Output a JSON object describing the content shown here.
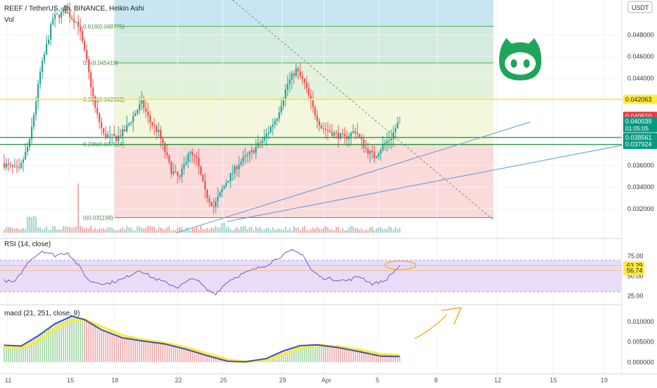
{
  "header": {
    "symbol_line": "REEF / TetherUS, 4h, BINANCE, Heikin Ashi",
    "vol_label": "Vol",
    "currency_button": "USDT"
  },
  "fib": {
    "levels": [
      {
        "label": "0.618(0.048775)",
        "value": 0.048775
      },
      {
        "label": "0.5(0.045419)",
        "value": 0.045419
      },
      {
        "label": "0.382(0.042063)",
        "value": 0.042063
      },
      {
        "label": "0.236(0.037924)",
        "value": 0.037924
      },
      {
        "label": "0(0.031198)",
        "value": 0.031198
      }
    ]
  },
  "price_badges": [
    {
      "text": "0.042063",
      "value": 0.042063,
      "bg": "#ffeb3b",
      "fg": "#222222"
    },
    {
      "text": "0.040510",
      "value": 0.04051,
      "bg": "#f23645",
      "fg": "#ffffff"
    },
    {
      "text": "0.040039",
      "value": 0.040039,
      "bg": "#089981",
      "fg": "#ffffff",
      "sub": "01:05:05"
    },
    {
      "text": "0.038561",
      "value": 0.038561,
      "bg": "#089981",
      "fg": "#ffffff"
    },
    {
      "text": "0.037924",
      "value": 0.037924,
      "bg": "#089981",
      "fg": "#ffffff"
    }
  ],
  "rsi": {
    "label": "RSI (14, close)",
    "badges": [
      {
        "text": "63.29",
        "value": 63.29,
        "bg": "#ffeb3b"
      },
      {
        "text": "56.74",
        "value": 56.74,
        "bg": "#ffeb3b"
      }
    ]
  },
  "macd": {
    "label": "macd (21, 251, close, 9)"
  },
  "colors": {
    "up": "#26a69a",
    "down": "#ef5350",
    "fib_line": "#4caf50",
    "resistance": "#ffeb3b",
    "trendline": "#5b9bd5",
    "rsi_band": "#e9dcf7",
    "macd_line": "#3f51b5",
    "signal_line": "#ffeb3b",
    "arrow": "#ff9800",
    "logo": "#1fa55a"
  },
  "chart_data": [
    {
      "type": "candlestick",
      "title": "REEF / TetherUS, 4h, BINANCE, Heikin Ashi",
      "ylim": [
        0.0298,
        0.0512
      ],
      "ytick_labels": [
        "0.048000",
        "0.046000",
        "0.044000",
        "0.036000",
        "0.034000",
        "0.032000"
      ],
      "yticks": [
        0.048,
        0.046,
        0.044,
        0.036,
        0.034,
        0.032
      ],
      "xtick_labels": [
        "11",
        "15",
        "18",
        "22",
        "25",
        "29",
        "Apr",
        "5",
        "8",
        "12",
        "15",
        "19"
      ],
      "keypoints": [
        {
          "t": 0,
          "price": 0.0362
        },
        {
          "t": 8,
          "price": 0.0355
        },
        {
          "t": 13,
          "price": 0.0382
        },
        {
          "t": 18,
          "price": 0.0445
        },
        {
          "t": 24,
          "price": 0.0495
        },
        {
          "t": 30,
          "price": 0.0502
        },
        {
          "t": 36,
          "price": 0.049
        },
        {
          "t": 40,
          "price": 0.0455
        },
        {
          "t": 44,
          "price": 0.0412
        },
        {
          "t": 48,
          "price": 0.0388
        },
        {
          "t": 54,
          "price": 0.0385
        },
        {
          "t": 58,
          "price": 0.0392
        },
        {
          "t": 62,
          "price": 0.0405
        },
        {
          "t": 66,
          "price": 0.0418
        },
        {
          "t": 70,
          "price": 0.04
        },
        {
          "t": 74,
          "price": 0.039
        },
        {
          "t": 80,
          "price": 0.0355
        },
        {
          "t": 84,
          "price": 0.0348
        },
        {
          "t": 88,
          "price": 0.0372
        },
        {
          "t": 92,
          "price": 0.0365
        },
        {
          "t": 96,
          "price": 0.0335
        },
        {
          "t": 100,
          "price": 0.0322
        },
        {
          "t": 106,
          "price": 0.0345
        },
        {
          "t": 112,
          "price": 0.0362
        },
        {
          "t": 118,
          "price": 0.0372
        },
        {
          "t": 124,
          "price": 0.0385
        },
        {
          "t": 130,
          "price": 0.0405
        },
        {
          "t": 135,
          "price": 0.0435
        },
        {
          "t": 139,
          "price": 0.0448
        },
        {
          "t": 143,
          "price": 0.0435
        },
        {
          "t": 147,
          "price": 0.0412
        },
        {
          "t": 151,
          "price": 0.0395
        },
        {
          "t": 156,
          "price": 0.039
        },
        {
          "t": 162,
          "price": 0.0385
        },
        {
          "t": 167,
          "price": 0.0392
        },
        {
          "t": 172,
          "price": 0.0375
        },
        {
          "t": 176,
          "price": 0.0368
        },
        {
          "t": 180,
          "price": 0.0378
        },
        {
          "t": 184,
          "price": 0.0386
        },
        {
          "t": 187,
          "price": 0.0398
        }
      ],
      "candle_count": 188,
      "fib_levels": [
        0.048775,
        0.045419,
        0.042063,
        0.037924,
        0.031198
      ],
      "horizontal_lines": [
        0.042063,
        0.038561,
        0.037924
      ]
    },
    {
      "type": "line",
      "title": "RSI (14, close)",
      "ylim": [
        20,
        85
      ],
      "ytick_labels": [
        "75.00",
        "50.00",
        "25.00"
      ],
      "yticks": [
        75,
        50,
        25
      ],
      "band": [
        30,
        70
      ],
      "keypoints": [
        {
          "t": 0,
          "v": 44
        },
        {
          "t": 5,
          "v": 42
        },
        {
          "t": 12,
          "v": 70
        },
        {
          "t": 18,
          "v": 82
        },
        {
          "t": 24,
          "v": 76
        },
        {
          "t": 30,
          "v": 80
        },
        {
          "t": 36,
          "v": 60
        },
        {
          "t": 40,
          "v": 44
        },
        {
          "t": 48,
          "v": 40
        },
        {
          "t": 56,
          "v": 46
        },
        {
          "t": 64,
          "v": 58
        },
        {
          "t": 70,
          "v": 48
        },
        {
          "t": 76,
          "v": 42
        },
        {
          "t": 82,
          "v": 36
        },
        {
          "t": 90,
          "v": 48
        },
        {
          "t": 96,
          "v": 32
        },
        {
          "t": 100,
          "v": 28
        },
        {
          "t": 106,
          "v": 44
        },
        {
          "t": 112,
          "v": 52
        },
        {
          "t": 118,
          "v": 58
        },
        {
          "t": 124,
          "v": 64
        },
        {
          "t": 130,
          "v": 74
        },
        {
          "t": 136,
          "v": 82
        },
        {
          "t": 141,
          "v": 78
        },
        {
          "t": 145,
          "v": 58
        },
        {
          "t": 150,
          "v": 48
        },
        {
          "t": 156,
          "v": 46
        },
        {
          "t": 162,
          "v": 44
        },
        {
          "t": 168,
          "v": 50
        },
        {
          "t": 174,
          "v": 40
        },
        {
          "t": 180,
          "v": 44
        },
        {
          "t": 187,
          "v": 63
        }
      ]
    },
    {
      "type": "line",
      "title": "macd (21, 251, close, 9)",
      "ylim": [
        -0.0008,
        0.0128
      ],
      "ytick_labels": [
        "0.010000",
        "0.005000",
        "0.000000"
      ],
      "yticks": [
        0.01,
        0.005,
        0.0
      ],
      "series": [
        {
          "key": "macd",
          "keypoints": [
            {
              "t": 0,
              "v": 0.0042
            },
            {
              "t": 8,
              "v": 0.004
            },
            {
              "t": 16,
              "v": 0.0065
            },
            {
              "t": 24,
              "v": 0.0095
            },
            {
              "t": 32,
              "v": 0.0114
            },
            {
              "t": 38,
              "v": 0.0105
            },
            {
              "t": 46,
              "v": 0.008
            },
            {
              "t": 56,
              "v": 0.006
            },
            {
              "t": 66,
              "v": 0.0052
            },
            {
              "t": 76,
              "v": 0.0045
            },
            {
              "t": 86,
              "v": 0.0032
            },
            {
              "t": 96,
              "v": 0.0016
            },
            {
              "t": 106,
              "v": 0.0002
            },
            {
              "t": 114,
              "v": 0.0001
            },
            {
              "t": 124,
              "v": 0.0009
            },
            {
              "t": 132,
              "v": 0.0028
            },
            {
              "t": 140,
              "v": 0.0041
            },
            {
              "t": 148,
              "v": 0.0043
            },
            {
              "t": 158,
              "v": 0.0036
            },
            {
              "t": 168,
              "v": 0.0026
            },
            {
              "t": 178,
              "v": 0.0015
            },
            {
              "t": 187,
              "v": 0.0014
            }
          ]
        },
        {
          "key": "signal",
          "keypoints": [
            {
              "t": 0,
              "v": 0.0038
            },
            {
              "t": 8,
              "v": 0.0036
            },
            {
              "t": 16,
              "v": 0.0052
            },
            {
              "t": 24,
              "v": 0.0082
            },
            {
              "t": 32,
              "v": 0.0104
            },
            {
              "t": 38,
              "v": 0.0106
            },
            {
              "t": 46,
              "v": 0.0088
            },
            {
              "t": 56,
              "v": 0.0066
            },
            {
              "t": 66,
              "v": 0.0055
            },
            {
              "t": 76,
              "v": 0.0048
            },
            {
              "t": 86,
              "v": 0.0036
            },
            {
              "t": 96,
              "v": 0.0021
            },
            {
              "t": 106,
              "v": 0.0006
            },
            {
              "t": 114,
              "v": 0.0001
            },
            {
              "t": 124,
              "v": 0.0005
            },
            {
              "t": 132,
              "v": 0.0019
            },
            {
              "t": 140,
              "v": 0.0035
            },
            {
              "t": 148,
              "v": 0.0042
            },
            {
              "t": 158,
              "v": 0.0039
            },
            {
              "t": 168,
              "v": 0.0031
            },
            {
              "t": 178,
              "v": 0.002
            },
            {
              "t": 187,
              "v": 0.0017
            }
          ]
        }
      ]
    }
  ]
}
